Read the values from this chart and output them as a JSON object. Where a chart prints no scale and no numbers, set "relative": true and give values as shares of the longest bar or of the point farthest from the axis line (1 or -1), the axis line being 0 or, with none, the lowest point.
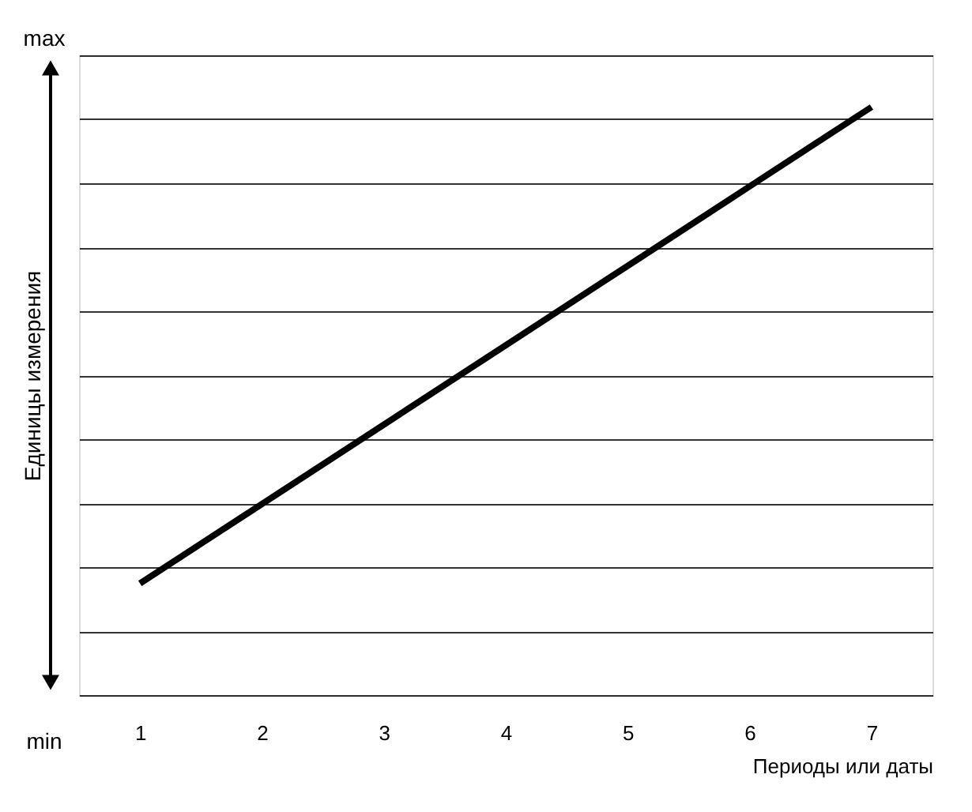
{
  "chart_data": {
    "type": "line",
    "relative": true,
    "xlabel": "Периоды или даты",
    "ylabel": "Единицы измерения",
    "annotations": [
      "max",
      "min"
    ],
    "x": [
      1,
      2,
      3,
      4,
      5,
      6,
      7
    ],
    "xlim": [
      0.5,
      7.5
    ],
    "xticks": [
      1,
      2,
      3,
      4,
      5,
      6,
      7
    ],
    "series": [
      {
        "color": "#000000",
        "values": [
          0.19,
          0.325,
          0.46,
          0.595,
          0.73,
          0.865,
          1.0
        ]
      }
    ],
    "grid": "y",
    "legend": false,
    "marker": "none",
    "line_style": "solid"
  }
}
